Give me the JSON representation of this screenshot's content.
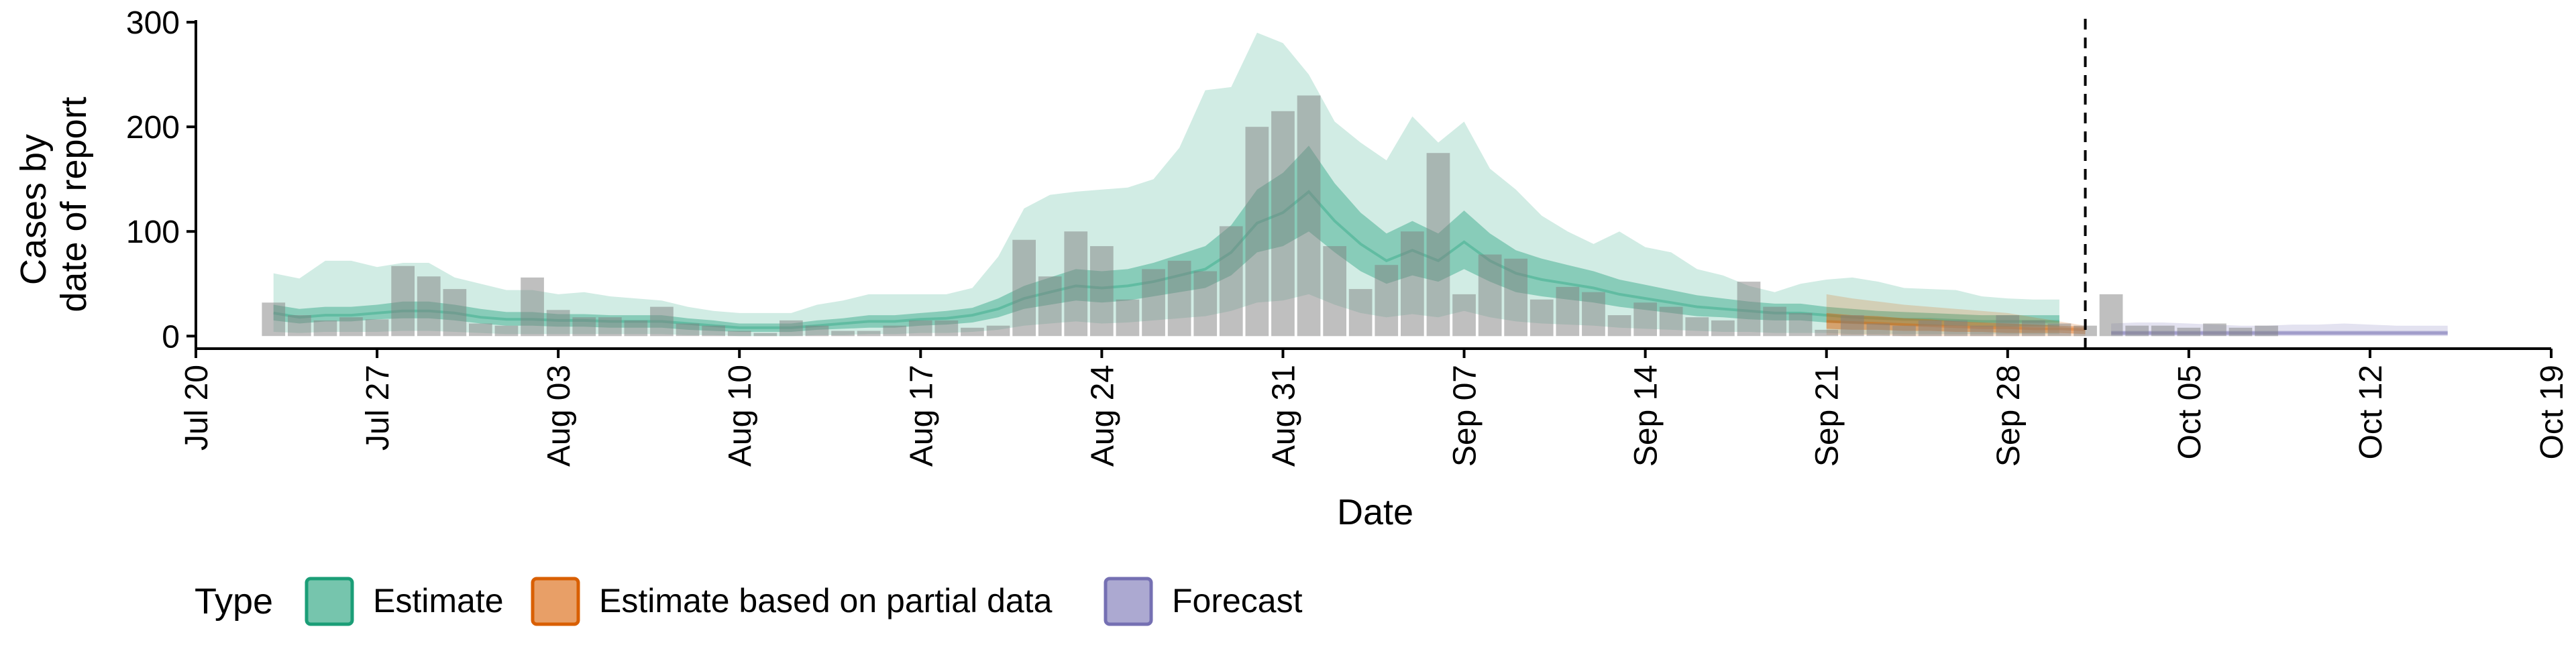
{
  "chart_data": {
    "type": "bar",
    "ylabel": [
      "Cases by",
      "date of report"
    ],
    "xlabel": "Date",
    "year": 2020,
    "xlim": [
      "2020-07-20",
      "2020-10-19"
    ],
    "ylim": [
      -12,
      302
    ],
    "y_ticks": [
      0,
      100,
      200,
      300
    ],
    "x_ticks": [
      "2020-07-20",
      "2020-07-27",
      "2020-08-03",
      "2020-08-10",
      "2020-08-17",
      "2020-08-24",
      "2020-08-31",
      "2020-09-07",
      "2020-09-14",
      "2020-09-21",
      "2020-09-28",
      "2020-10-05",
      "2020-10-12",
      "2020-10-19"
    ],
    "x_tick_labels": [
      "Jul 20",
      "Jul 27",
      "Aug 03",
      "Aug 10",
      "Aug 17",
      "Aug 24",
      "Aug 31",
      "Sep 07",
      "Sep 14",
      "Sep 21",
      "Sep 28",
      "Oct 05",
      "Oct 12",
      "Oct 19"
    ],
    "forecast_date": "2020-10-01",
    "grid": false,
    "legend": {
      "title": "Type",
      "position": "bottom",
      "items": [
        {
          "label": "Estimate",
          "color": "#1B9E77"
        },
        {
          "label": "Estimate based on partial data",
          "color": "#D95F02"
        },
        {
          "label": "Forecast",
          "color": "#7570B3"
        }
      ]
    },
    "reported_cases": {
      "start": "2020-07-23",
      "values": [
        32,
        20,
        15,
        18,
        16,
        67,
        57,
        45,
        12,
        10,
        56,
        25,
        18,
        18,
        15,
        28,
        12,
        10,
        5,
        3,
        15,
        10,
        5,
        5,
        10,
        15,
        15,
        8,
        10,
        92,
        57,
        100,
        86,
        35,
        64,
        72,
        62,
        105,
        200,
        215,
        230,
        86,
        45,
        68,
        100,
        175,
        40,
        78,
        74,
        35,
        47,
        42,
        20,
        32,
        28,
        18,
        15,
        52,
        28,
        22,
        6,
        20,
        12,
        10,
        15,
        15,
        10,
        20,
        15,
        12,
        10,
        40,
        10,
        10,
        8,
        12,
        8,
        10
      ]
    },
    "series": [
      {
        "name": "Estimate",
        "color": "#1B9E77",
        "start": "2020-07-23",
        "median": [
          22,
          18,
          20,
          20,
          22,
          24,
          24,
          22,
          18,
          16,
          16,
          15,
          15,
          14,
          14,
          14,
          12,
          10,
          8,
          8,
          8,
          10,
          12,
          14,
          14,
          16,
          17,
          20,
          26,
          36,
          42,
          48,
          46,
          48,
          52,
          58,
          64,
          80,
          108,
          118,
          138,
          110,
          88,
          72,
          82,
          72,
          90,
          72,
          60,
          54,
          50,
          46,
          40,
          36,
          32,
          28,
          26,
          24,
          22,
          22,
          20,
          18,
          17,
          16,
          16,
          15,
          14,
          14,
          14,
          14
        ],
        "ci_50": [
          [
            15,
            12,
            14,
            14,
            16,
            17,
            17,
            15,
            12,
            10,
            10,
            9,
            9,
            8,
            8,
            8,
            6,
            5,
            4,
            4,
            4,
            6,
            7,
            8,
            8,
            10,
            11,
            13,
            18,
            26,
            30,
            34,
            32,
            34,
            38,
            42,
            46,
            58,
            80,
            86,
            100,
            80,
            62,
            50,
            58,
            52,
            64,
            52,
            42,
            38,
            35,
            32,
            28,
            25,
            22,
            19,
            18,
            16,
            15,
            15,
            13,
            12,
            11,
            10,
            10,
            10,
            9,
            9,
            9,
            9
          ],
          [
            30,
            26,
            28,
            28,
            30,
            33,
            33,
            30,
            26,
            23,
            23,
            21,
            21,
            20,
            20,
            20,
            17,
            15,
            12,
            12,
            12,
            15,
            17,
            20,
            20,
            22,
            24,
            27,
            36,
            48,
            56,
            64,
            62,
            64,
            70,
            78,
            86,
            106,
            140,
            156,
            182,
            146,
            118,
            98,
            110,
            98,
            120,
            98,
            82,
            74,
            68,
            62,
            54,
            49,
            44,
            39,
            36,
            33,
            31,
            31,
            28,
            26,
            24,
            23,
            22,
            21,
            20,
            20,
            20,
            20
          ]
        ],
        "ci_90": [
          [
            4,
            3,
            4,
            4,
            4,
            5,
            5,
            4,
            3,
            2,
            2,
            2,
            2,
            2,
            2,
            2,
            1,
            1,
            0,
            0,
            0,
            1,
            1,
            2,
            2,
            3,
            3,
            4,
            6,
            10,
            12,
            14,
            12,
            13,
            15,
            17,
            19,
            24,
            32,
            34,
            40,
            30,
            22,
            18,
            21,
            18,
            24,
            18,
            14,
            12,
            11,
            10,
            8,
            7,
            6,
            5,
            4,
            4,
            3,
            3,
            3,
            2,
            2,
            2,
            2,
            2,
            2,
            2,
            2,
            2
          ],
          [
            60,
            55,
            72,
            72,
            66,
            70,
            70,
            56,
            50,
            44,
            44,
            40,
            42,
            38,
            36,
            34,
            28,
            24,
            22,
            22,
            22,
            30,
            34,
            40,
            40,
            40,
            40,
            46,
            76,
            122,
            135,
            138,
            140,
            142,
            150,
            180,
            235,
            238,
            290,
            280,
            250,
            205,
            185,
            168,
            210,
            185,
            205,
            160,
            140,
            115,
            100,
            88,
            100,
            85,
            80,
            64,
            58,
            48,
            42,
            50,
            54,
            56,
            52,
            46,
            45,
            44,
            38,
            36,
            35,
            35
          ]
        ]
      },
      {
        "name": "Estimate based on partial data",
        "color": "#D95F02",
        "start": "2020-09-21",
        "median": [
          14,
          13,
          12,
          11,
          10,
          9,
          8,
          8,
          7,
          7,
          6
        ],
        "ci_50": [
          [
            7,
            6,
            6,
            5,
            5,
            4,
            4,
            3,
            3,
            3,
            2
          ],
          [
            22,
            20,
            19,
            17,
            16,
            14,
            13,
            12,
            11,
            10,
            9
          ]
        ],
        "ci_90": [
          [
            1,
            1,
            1,
            0,
            0,
            0,
            0,
            0,
            0,
            0,
            0
          ],
          [
            40,
            36,
            33,
            30,
            28,
            26,
            24,
            22,
            18,
            14,
            10
          ]
        ]
      },
      {
        "name": "Forecast",
        "color": "#7570B3",
        "start": "2020-10-02",
        "median": [
          3,
          3,
          3,
          3,
          3,
          3,
          3,
          3,
          3,
          3,
          3,
          3,
          3,
          3
        ],
        "ci_50": [
          [
            1,
            1,
            1,
            1,
            1,
            1,
            1,
            1,
            1,
            1,
            1,
            1,
            1,
            1
          ],
          [
            5,
            5,
            5,
            5,
            5,
            5,
            5,
            5,
            5,
            5,
            5,
            5,
            5,
            5
          ]
        ],
        "ci_90": [
          [
            0,
            0,
            0,
            0,
            0,
            0,
            0,
            0,
            0,
            0,
            0,
            0,
            0,
            0
          ],
          [
            12,
            13,
            13,
            12,
            11,
            10,
            10,
            11,
            11,
            12,
            11,
            10,
            10,
            10
          ]
        ]
      }
    ]
  }
}
